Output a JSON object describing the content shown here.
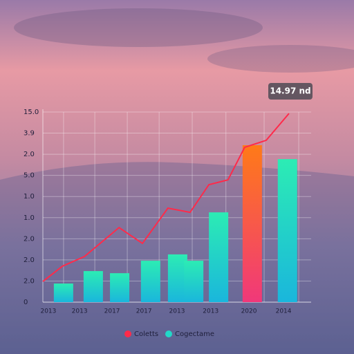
{
  "chart_data": {
    "type": "bar_line",
    "annotation": "14.97 nd",
    "xlim": [
      0,
      9
    ],
    "ylim": [
      0,
      9
    ],
    "xticks": [
      {
        "value": 0.34,
        "label": "2013"
      },
      {
        "value": 1.37,
        "label": "2013"
      },
      {
        "value": 2.44,
        "label": "2017"
      },
      {
        "value": 3.49,
        "label": "2017"
      },
      {
        "value": 4.58,
        "label": "2013"
      },
      {
        "value": 5.69,
        "label": "2013"
      },
      {
        "value": 6.95,
        "label": "2020"
      },
      {
        "value": 8.09,
        "label": "2014"
      }
    ],
    "yticks": [
      0,
      {
        "value": 1,
        "label": "2.0"
      },
      {
        "value": 2,
        "label": "2.0"
      },
      {
        "value": 3,
        "label": "2.0"
      },
      {
        "value": 4,
        "label": "1.0"
      },
      {
        "value": 5,
        "label": "1.0"
      },
      {
        "value": 6,
        "label": "5.0"
      },
      {
        "value": 7,
        "label": "2.0"
      },
      {
        "value": 8,
        "label": "3.9"
      },
      {
        "value": 9,
        "label": "15.0"
      }
    ],
    "grid": true,
    "series": [
      {
        "name": "Coletts",
        "kind": "line",
        "color": "#ff2a4a",
        "x": [
          0.16,
          0.8,
          1.53,
          2.67,
          3.44,
          4.28,
          5.01,
          5.63,
          6.26,
          6.81,
          7.52,
          8.27
        ],
        "values": [
          0.98,
          1.7,
          2.16,
          3.53,
          2.78,
          4.45,
          4.25,
          5.56,
          5.79,
          7.33,
          7.66,
          8.93
        ]
      },
      {
        "name": "Cogectame",
        "kind": "bar",
        "color": "#22d8c8",
        "x": [
          0.84,
          1.82,
          2.69,
          3.71,
          4.6,
          5.13,
          5.95,
          7.06,
          8.22
        ],
        "values": [
          0.88,
          1.47,
          1.37,
          1.96,
          2.26,
          1.96,
          4.25,
          7.43,
          6.77
        ],
        "highlight": {
          "index": 7,
          "color": "#ff6a20"
        }
      }
    ]
  }
}
